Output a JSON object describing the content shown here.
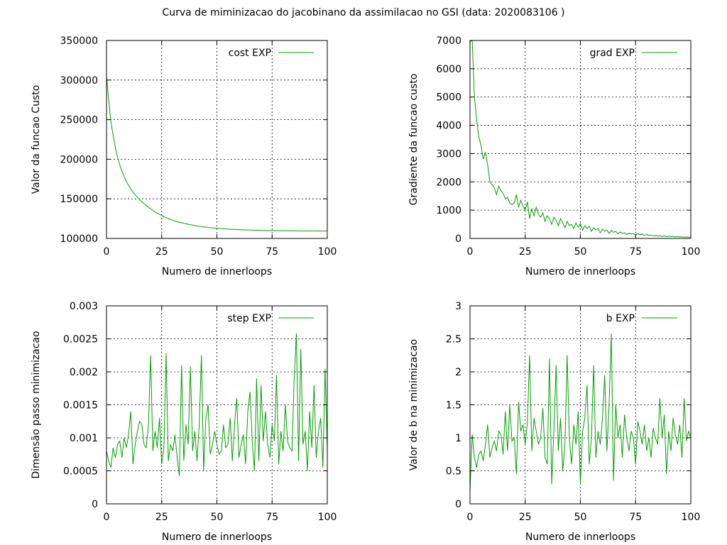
{
  "title": "Curva de miminizacao do jacobinano da assimilacao no GSI (data: 2020083106 )",
  "chart_data": [
    {
      "type": "line",
      "xlabel": "Numero de innerloops",
      "ylabel": "Valor da funcao Custo",
      "xlim": [
        0,
        100
      ],
      "ylim": [
        100000,
        350000
      ],
      "xticks": [
        0,
        25,
        50,
        75,
        100
      ],
      "yticks": [
        100000,
        150000,
        200000,
        250000,
        300000,
        350000
      ],
      "ytick_labels": [
        "100000",
        "150000",
        "200000",
        "250000",
        "300000",
        "350000"
      ],
      "grid": true,
      "legend": "top-right",
      "series": [
        {
          "name": "cost EXP",
          "color": "#00a000",
          "x": [
            0,
            1,
            2,
            3,
            4,
            5,
            6,
            7,
            8,
            9,
            10,
            11,
            12,
            13,
            14,
            15,
            16,
            17,
            18,
            19,
            20,
            21,
            22,
            23,
            24,
            25,
            26,
            27,
            28,
            29,
            30,
            31,
            32,
            33,
            34,
            35,
            36,
            37,
            38,
            39,
            40,
            41,
            42,
            43,
            44,
            45,
            46,
            47,
            48,
            49,
            50,
            51,
            52,
            53,
            54,
            55,
            56,
            57,
            58,
            59,
            60,
            61,
            62,
            63,
            64,
            65,
            66,
            67,
            68,
            69,
            70,
            71,
            72,
            73,
            74,
            75,
            76,
            77,
            78,
            79,
            80,
            81,
            82,
            83,
            84,
            85,
            86,
            87,
            88,
            89,
            90,
            91,
            92,
            93,
            94,
            95,
            96,
            97,
            98,
            99,
            100
          ],
          "values": [
            305000,
            275000,
            248000,
            230000,
            215000,
            203000,
            193000,
            185000,
            178000,
            172000,
            167000,
            162500,
            158500,
            155000,
            152000,
            149000,
            146500,
            144000,
            141500,
            139500,
            137500,
            135500,
            133700,
            132000,
            130500,
            129000,
            127600,
            126300,
            125100,
            124000,
            123000,
            122100,
            121300,
            120500,
            119800,
            119100,
            118500,
            117900,
            117300,
            116800,
            116300,
            115800,
            115400,
            115000,
            114600,
            114200,
            113900,
            113600,
            113300,
            113000,
            112800,
            112600,
            112400,
            112200,
            112000,
            111800,
            111650,
            111500,
            111350,
            111200,
            111080,
            110960,
            110850,
            110750,
            110650,
            110560,
            110480,
            110400,
            110330,
            110260,
            110200,
            110140,
            110090,
            110040,
            110000,
            109950,
            109910,
            109870,
            109830,
            109800,
            109770,
            109740,
            109710,
            109680,
            109660,
            109630,
            109610,
            109590,
            109570,
            109550,
            109530,
            109520,
            109500,
            109490,
            109480,
            109470,
            109460,
            109450,
            109440,
            109430,
            109420
          ]
        }
      ]
    },
    {
      "type": "line",
      "xlabel": "Numero de innerloops",
      "ylabel": "Gradiente da funcao custo",
      "xlim": [
        0,
        100
      ],
      "ylim": [
        0,
        7000
      ],
      "xticks": [
        0,
        25,
        50,
        75,
        100
      ],
      "yticks": [
        0,
        1000,
        2000,
        3000,
        4000,
        5000,
        6000,
        7000
      ],
      "ytick_labels": [
        "0",
        "1000",
        "2000",
        "3000",
        "4000",
        "5000",
        "6000",
        "7000"
      ],
      "grid": true,
      "legend": "top-right",
      "series": [
        {
          "name": "grad EXP",
          "color": "#00a000",
          "x": [
            0,
            1,
            2,
            3,
            4,
            5,
            6,
            7,
            8,
            9,
            10,
            11,
            12,
            13,
            14,
            15,
            16,
            17,
            18,
            19,
            20,
            21,
            22,
            23,
            24,
            25,
            26,
            27,
            28,
            29,
            30,
            31,
            32,
            33,
            34,
            35,
            36,
            37,
            38,
            39,
            40,
            41,
            42,
            43,
            44,
            45,
            46,
            47,
            48,
            49,
            50,
            51,
            52,
            53,
            54,
            55,
            56,
            57,
            58,
            59,
            60,
            61,
            62,
            63,
            64,
            65,
            66,
            67,
            68,
            69,
            70,
            71,
            72,
            73,
            74,
            75,
            76,
            77,
            78,
            79,
            80,
            81,
            82,
            83,
            84,
            85,
            86,
            87,
            88,
            89,
            90,
            91,
            92,
            93,
            94,
            95,
            96,
            97,
            98,
            99,
            100
          ],
          "values": [
            6950,
            7000,
            5000,
            4200,
            3600,
            3300,
            2800,
            3050,
            2600,
            2000,
            1900,
            1800,
            1550,
            1850,
            1700,
            1600,
            1400,
            1450,
            1250,
            1200,
            1250,
            1550,
            1100,
            1350,
            1150,
            1000,
            1300,
            700,
            1050,
            800,
            1100,
            850,
            750,
            900,
            600,
            800,
            700,
            500,
            750,
            650,
            450,
            700,
            550,
            380,
            600,
            450,
            500,
            350,
            550,
            400,
            520,
            300,
            450,
            350,
            430,
            250,
            380,
            300,
            350,
            200,
            330,
            250,
            300,
            180,
            280,
            220,
            250,
            160,
            230,
            180,
            200,
            140,
            190,
            160,
            170,
            120,
            170,
            130,
            150,
            110,
            140,
            100,
            120,
            90,
            110,
            80,
            100,
            70,
            90,
            60,
            80,
            65,
            75,
            55,
            70,
            50,
            60,
            45,
            55,
            40,
            45
          ]
        }
      ]
    },
    {
      "type": "line",
      "xlabel": "Numero de innerloops",
      "ylabel": "Dimensão passo minimizacao",
      "xlim": [
        0,
        100
      ],
      "ylim": [
        0,
        0.003
      ],
      "xticks": [
        0,
        25,
        50,
        75,
        100
      ],
      "yticks": [
        0,
        0.0005,
        0.001,
        0.0015,
        0.002,
        0.0025,
        0.003
      ],
      "ytick_labels": [
        "0",
        "0.0005",
        "0.001",
        "0.0015",
        "0.002",
        "0.0025",
        "0.003"
      ],
      "grid": true,
      "legend": "top-right",
      "series": [
        {
          "name": "step EXP",
          "color": "#00a000",
          "x": [
            0,
            1,
            2,
            3,
            4,
            5,
            6,
            7,
            8,
            9,
            10,
            11,
            12,
            13,
            14,
            15,
            16,
            17,
            18,
            19,
            20,
            21,
            22,
            23,
            24,
            25,
            26,
            27,
            28,
            29,
            30,
            31,
            32,
            33,
            34,
            35,
            36,
            37,
            38,
            39,
            40,
            41,
            42,
            43,
            44,
            45,
            46,
            47,
            48,
            49,
            50,
            51,
            52,
            53,
            54,
            55,
            56,
            57,
            58,
            59,
            60,
            61,
            62,
            63,
            64,
            65,
            66,
            67,
            68,
            69,
            70,
            71,
            72,
            73,
            74,
            75,
            76,
            77,
            78,
            79,
            80,
            81,
            82,
            83,
            84,
            85,
            86,
            87,
            88,
            89,
            90,
            91,
            92,
            93,
            94,
            95,
            96,
            97,
            98,
            99,
            100
          ],
          "values": [
            0.0008,
            0.00065,
            0.00055,
            0.00085,
            0.0007,
            0.0009,
            0.00095,
            0.0007,
            0.001,
            0.00085,
            0.00105,
            0.0014,
            0.0006,
            0.0009,
            0.0011,
            0.00125,
            0.0012,
            0.0009,
            0.00085,
            0.0012,
            0.00225,
            0.0008,
            0.0011,
            0.00085,
            0.0013,
            0.0006,
            0.00085,
            0.00228,
            0.00065,
            0.0009,
            0.0008,
            0.00105,
            0.0007,
            0.00042,
            0.0021,
            0.00065,
            0.0012,
            0.0009,
            0.00208,
            0.0008,
            0.0011,
            0.00065,
            0.0012,
            0.00225,
            0.0005,
            0.0013,
            0.0015,
            0.00075,
            0.0009,
            0.0011,
            0.0009,
            0.00075,
            0.0008,
            0.0012,
            0.00085,
            0.0009,
            0.0013,
            0.00065,
            0.0012,
            0.0016,
            0.0007,
            0.0009,
            0.00105,
            0.0006,
            0.0014,
            0.0017,
            0.00095,
            0.0005,
            0.0019,
            0.00065,
            0.0018,
            0.00095,
            0.0014,
            0.0009,
            0.0007,
            0.0012,
            0.00095,
            0.00195,
            0.0006,
            0.0011,
            0.0008,
            0.0015,
            0.00095,
            0.00085,
            0.0008,
            0.0019,
            0.00258,
            0.00065,
            0.00235,
            0.0009,
            0.0011,
            0.0005,
            0.0014,
            0.00085,
            0.0018,
            0.0007,
            0.0011,
            0.0013,
            0.00055,
            0.00205,
            0.0008
          ]
        }
      ]
    },
    {
      "type": "line",
      "xlabel": "Numero de innerloops",
      "ylabel": "Valor de b na minimizacao",
      "xlim": [
        0,
        100
      ],
      "ylim": [
        0,
        3
      ],
      "xticks": [
        0,
        25,
        50,
        75,
        100
      ],
      "yticks": [
        0,
        0.5,
        1,
        1.5,
        2,
        2.5,
        3
      ],
      "ytick_labels": [
        "0",
        "0.5",
        "1",
        "1.5",
        "2",
        "2.5",
        "3"
      ],
      "grid": true,
      "legend": "top-right",
      "series": [
        {
          "name": "b EXP",
          "color": "#00a000",
          "x": [
            0,
            1,
            2,
            3,
            4,
            5,
            6,
            7,
            8,
            9,
            10,
            11,
            12,
            13,
            14,
            15,
            16,
            17,
            18,
            19,
            20,
            21,
            22,
            23,
            24,
            25,
            26,
            27,
            28,
            29,
            30,
            31,
            32,
            33,
            34,
            35,
            36,
            37,
            38,
            39,
            40,
            41,
            42,
            43,
            44,
            45,
            46,
            47,
            48,
            49,
            50,
            51,
            52,
            53,
            54,
            55,
            56,
            57,
            58,
            59,
            60,
            61,
            62,
            63,
            64,
            65,
            66,
            67,
            68,
            69,
            70,
            71,
            72,
            73,
            74,
            75,
            76,
            77,
            78,
            79,
            80,
            81,
            82,
            83,
            84,
            85,
            86,
            87,
            88,
            89,
            90,
            91,
            92,
            93,
            94,
            95,
            96,
            97,
            98,
            99,
            100
          ],
          "values": [
            0.18,
            1.05,
            0.7,
            0.55,
            0.75,
            0.8,
            0.65,
            0.9,
            1.2,
            0.7,
            0.85,
            0.95,
            0.8,
            1.1,
            1.05,
            0.75,
            1.4,
            0.8,
            1.5,
            0.95,
            1.0,
            0.45,
            1.55,
            1.1,
            1.2,
            0.9,
            1.25,
            2.25,
            0.8,
            1.3,
            1.1,
            0.9,
            1.0,
            1.45,
            0.7,
            0.6,
            2.2,
            0.3,
            1.1,
            2.1,
            0.8,
            1.3,
            0.5,
            0.9,
            2.25,
            1.0,
            0.6,
            1.2,
            0.9,
            1.4,
            0.3,
            1.1,
            1.3,
            1.8,
            0.6,
            1.0,
            2.1,
            0.7,
            1.1,
            0.9,
            1.3,
            1.95,
            0.8,
            1.5,
            2.58,
            0.35,
            1.5,
            1.0,
            1.2,
            0.7,
            1.35,
            1.0,
            0.8,
            1.1,
            1.0,
            0.6,
            1.25,
            1.1,
            0.9,
            1.2,
            0.8,
            1.0,
            0.7,
            1.15,
            1.0,
            0.9,
            1.6,
            1.0,
            1.35,
            0.45,
            1.1,
            0.8,
            1.3,
            1.05,
            0.9,
            1.2,
            0.7,
            1.6,
            0.95,
            1.1,
            1.0
          ]
        }
      ]
    }
  ]
}
